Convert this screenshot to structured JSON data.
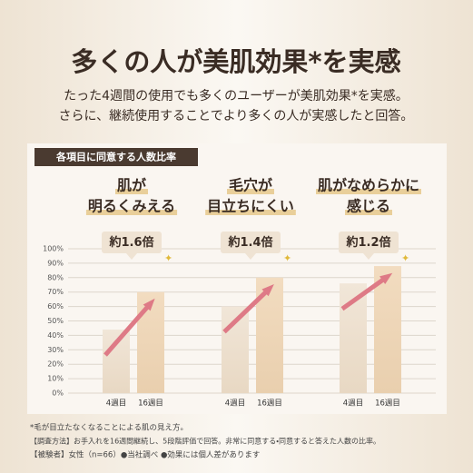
{
  "title": "多くの人が美肌効果*を実感",
  "subtitle": [
    "たった4週間の使用でも多くのユーザーが美肌効果*を実感。",
    "さらに、継続使用することでより多くの人が実感したと回答。"
  ],
  "panel_label": "各項目に同意する人数比率",
  "footnotes": [
    "*毛が目立たなくなることによる肌の見え方。",
    "【調査方法】お手入れを16週間継続し、5段階評価で回答。非常に同意する・同意すると答えた人数の比率。",
    "【被験者】女性（n=66）●当社調べ ●効果には個人差があります"
  ],
  "chart_data": [
    {
      "type": "bar",
      "title": [
        "肌が",
        "明るくみえる"
      ],
      "badge": "約1.6倍",
      "categories": [
        "4週目",
        "16週目"
      ],
      "values": [
        44,
        70
      ],
      "ylim": [
        0,
        100
      ],
      "yticks": [
        {
          "value": 0,
          "label": "0%"
        },
        {
          "value": 10,
          "label": "10%"
        },
        {
          "value": 20,
          "label": "20%"
        },
        {
          "value": 30,
          "label": "30%"
        },
        {
          "value": 40,
          "label": "40%"
        },
        {
          "value": 50,
          "label": "50%"
        },
        {
          "value": 60,
          "label": "60%"
        },
        {
          "value": 70,
          "label": "70%"
        },
        {
          "value": 80,
          "label": "80%"
        },
        {
          "value": 90,
          "label": "90%"
        },
        {
          "value": 100,
          "label": "100%"
        }
      ],
      "grid": true
    },
    {
      "type": "bar",
      "title": [
        "毛穴が",
        "目立ちにくい"
      ],
      "badge": "約1.4倍",
      "categories": [
        "4週目",
        "16週目"
      ],
      "values": [
        60,
        80
      ],
      "ylim": [
        0,
        100
      ]
    },
    {
      "type": "bar",
      "title": [
        "肌がなめらかに",
        "感じる"
      ],
      "badge": "約1.2倍",
      "categories": [
        "4週目",
        "16週目"
      ],
      "values": [
        76,
        88
      ],
      "ylim": [
        0,
        100
      ]
    }
  ]
}
